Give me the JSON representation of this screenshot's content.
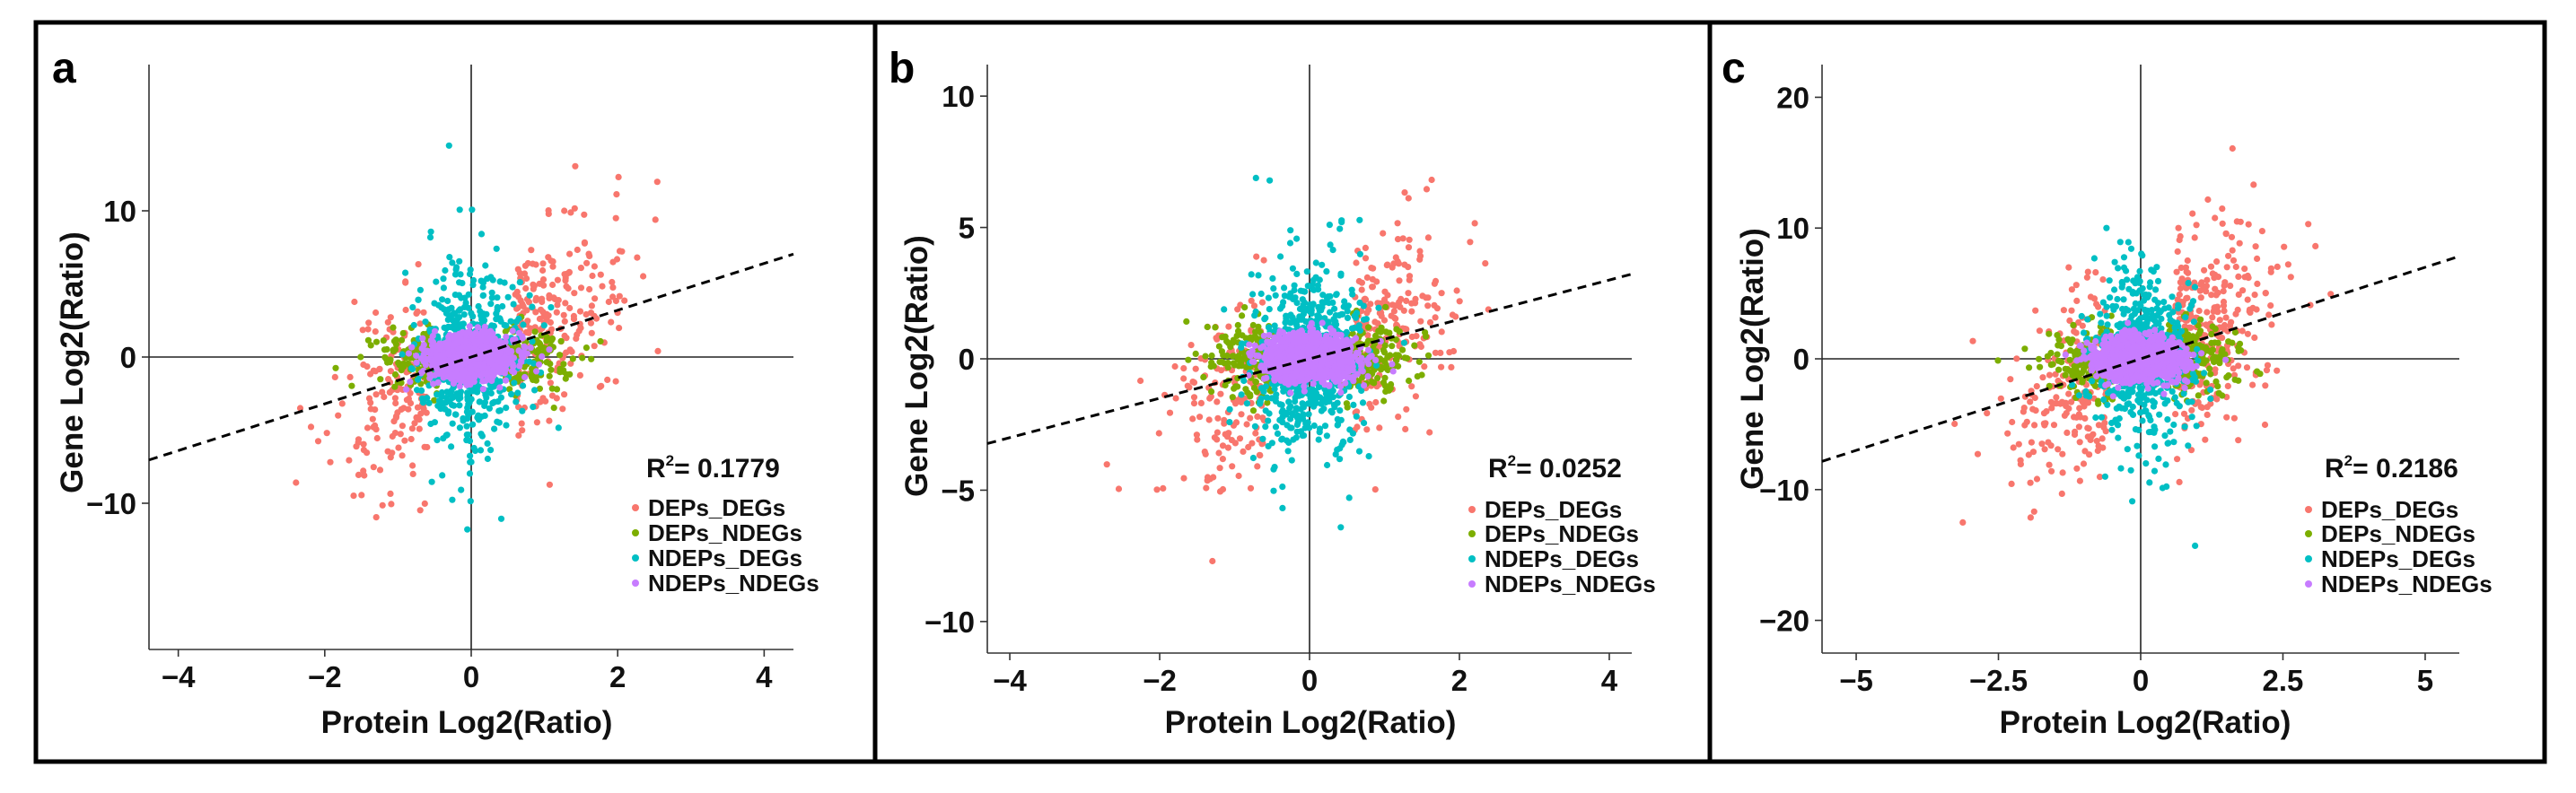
{
  "chart_data": [
    {
      "type": "scatter",
      "panel_label": "a",
      "xlabel": "Protein Log2(Ratio)",
      "ylabel": "Gene Log2(Ratio)",
      "xlim": [
        -4.4,
        4.4
      ],
      "ylim": [
        -20,
        20
      ],
      "xticks": [
        -4,
        -2,
        0,
        2,
        4
      ],
      "xtick_labels": [
        "−4",
        "−2",
        "0",
        "2",
        "4"
      ],
      "yticks": [
        -10,
        0,
        10
      ],
      "ytick_labels": [
        "−10",
        "0",
        "10"
      ],
      "r2": "0.1779",
      "r2_prefix": "R",
      "r2_sup": "2",
      "r2_sep": "= ",
      "fit_line": {
        "slope": 1.6,
        "intercept": 0
      },
      "legend_position": "bottom-right",
      "series": [
        {
          "name": "DEPs_DEGs",
          "color": "#F8766D",
          "count": 380
        },
        {
          "name": "DEPs_NDEGs",
          "color": "#7CAE00",
          "count": 260
        },
        {
          "name": "NDEPs_DEGs",
          "color": "#00BFC4",
          "count": 520
        },
        {
          "name": "NDEPs_NDEGs",
          "color": "#C77CFF",
          "count": 1300
        }
      ]
    },
    {
      "type": "scatter",
      "panel_label": "b",
      "xlabel": "Protein Log2(Ratio)",
      "ylabel": "Gene Log2(Ratio)",
      "xlim": [
        -4.3,
        4.3
      ],
      "ylim": [
        -11.2,
        11.2
      ],
      "xticks": [
        -4,
        -2,
        0,
        2,
        4
      ],
      "xtick_labels": [
        "−4",
        "−2",
        "0",
        "2",
        "4"
      ],
      "yticks": [
        -10,
        -5,
        0,
        5,
        10
      ],
      "ytick_labels": [
        "−10",
        "−5",
        "0",
        "5",
        "10"
      ],
      "r2": "0.0252",
      "r2_prefix": "R",
      "r2_sup": "2",
      "r2_sep": "= ",
      "fit_line": {
        "slope": 0.75,
        "intercept": 0
      },
      "legend_position": "bottom-right",
      "series": [
        {
          "name": "DEPs_DEGs",
          "color": "#F8766D",
          "count": 360
        },
        {
          "name": "DEPs_NDEGs",
          "color": "#7CAE00",
          "count": 340
        },
        {
          "name": "NDEPs_DEGs",
          "color": "#00BFC4",
          "count": 700
        },
        {
          "name": "NDEPs_NDEGs",
          "color": "#C77CFF",
          "count": 1500
        }
      ]
    },
    {
      "type": "scatter",
      "panel_label": "c",
      "xlabel": "Protein Log2(Ratio)",
      "ylabel": "Gene Log2(Ratio)",
      "xlim": [
        -5.6,
        5.6
      ],
      "ylim": [
        -22.5,
        22.5
      ],
      "xticks": [
        -5,
        -2.5,
        0,
        2.5,
        5
      ],
      "xtick_labels": [
        "−5",
        "−2.5",
        "0",
        "2.5",
        "5"
      ],
      "yticks": [
        -20,
        -10,
        0,
        10,
        20
      ],
      "ytick_labels": [
        "−20",
        "−10",
        "0",
        "10",
        "20"
      ],
      "r2": "0.2186",
      "r2_prefix": "R",
      "r2_sup": "2",
      "r2_sep": "= ",
      "fit_line": {
        "slope": 1.4,
        "intercept": 0
      },
      "legend_position": "bottom-right",
      "series": [
        {
          "name": "DEPs_DEGs",
          "color": "#F8766D",
          "count": 500
        },
        {
          "name": "DEPs_NDEGs",
          "color": "#7CAE00",
          "count": 380
        },
        {
          "name": "NDEPs_DEGs",
          "color": "#00BFC4",
          "count": 560
        },
        {
          "name": "NDEPs_NDEGs",
          "color": "#C77CFF",
          "count": 1300
        }
      ]
    }
  ]
}
